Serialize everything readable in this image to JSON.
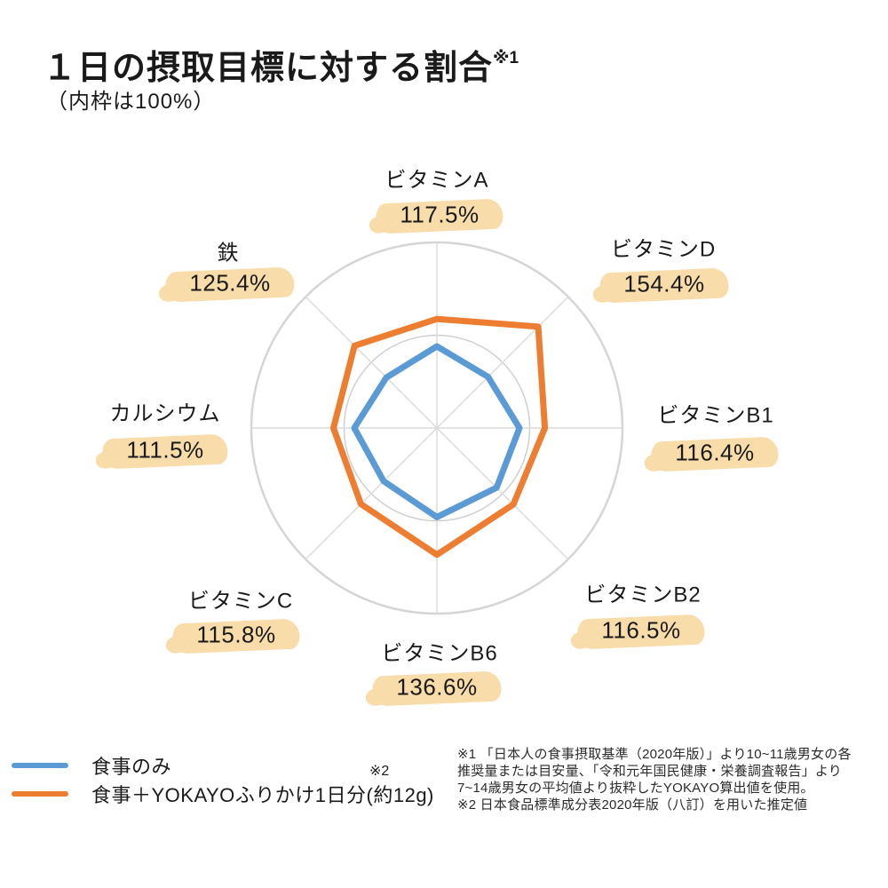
{
  "title": {
    "text": "１日の摂取目標に対する割合",
    "sup": "※1"
  },
  "subtitle": "（内枠は100%）",
  "chart_data": {
    "type": "radar",
    "title": "１日の摂取目標に対する割合",
    "note": "内枠は100%",
    "categories": [
      "ビタミンA",
      "ビタミンD",
      "ビタミンB1",
      "ビタミンB2",
      "ビタミンB6",
      "ビタミンC",
      "カルシウム",
      "鉄"
    ],
    "value_labels": [
      "117.5%",
      "154.4%",
      "116.4%",
      "116.5%",
      "136.6%",
      "115.8%",
      "111.5%",
      "125.4%"
    ],
    "series": [
      {
        "name": "食事のみ",
        "color": "#5B9BD5",
        "values": [
          88,
          78,
          89,
          91,
          96,
          81,
          89,
          77
        ]
      },
      {
        "name": "食事＋YOKAYOふりかけ1日分(約12g)",
        "color": "#ED7D31",
        "values": [
          117.5,
          154.4,
          116.4,
          116.5,
          136.6,
          115.8,
          111.5,
          125.4
        ]
      }
    ],
    "rmax": 200,
    "rings_pct": [
      100,
      200
    ],
    "axis_start": "top",
    "direction": "clockwise",
    "grid_color_outer": "#d5d5d5",
    "grid_color_inner": "#cfcfcf",
    "grid_color_spoke": "#dadada",
    "highlight_color": "#F8DCA9",
    "legend_position": "bottom-left"
  },
  "legend": {
    "items": [
      {
        "label": "食事のみ",
        "color": "#5B9BD5",
        "sup": ""
      },
      {
        "label": "食事＋YOKAYOふりかけ1日分(約12g)",
        "color": "#ED7D31",
        "sup": "※2"
      }
    ]
  },
  "footnotes": {
    "lines": [
      "※1 「日本人の食事摂取基準（2020年版）」より10~11歳男女の各",
      "推奨量または目安量、「令和元年国民健康・栄養調査報告」より",
      "7~14歳男女の平均値より抜粋したYOKAYO算出値を使用。",
      "※2 日本食品標準成分表2020年版（八訂）を用いた推定値"
    ]
  }
}
